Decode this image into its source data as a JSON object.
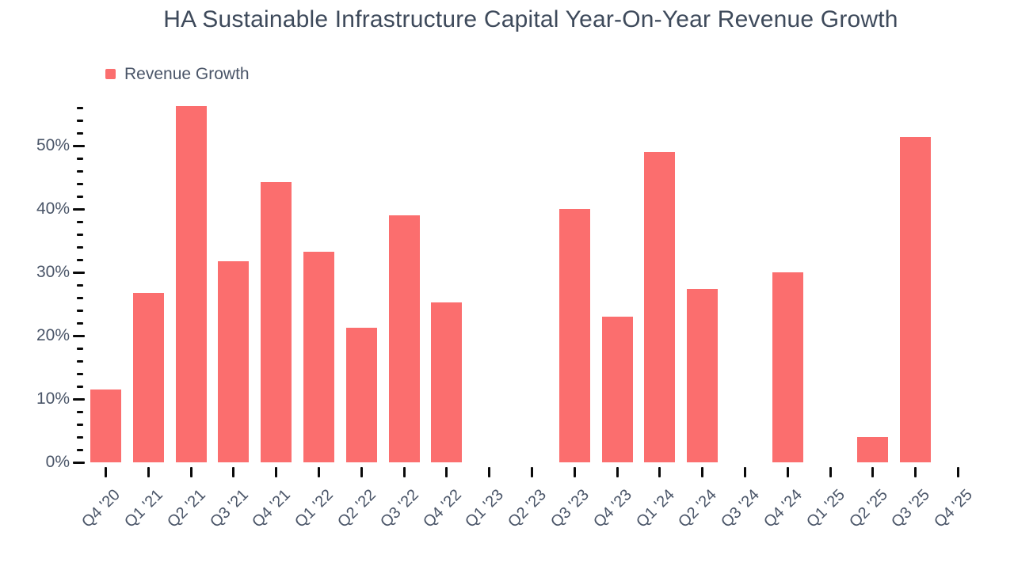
{
  "title": "HA Sustainable Infrastructure Capital Year-On-Year Revenue Growth",
  "legend": {
    "label": "Revenue Growth"
  },
  "colors": {
    "bar": "#FB6E6E",
    "axis_tick": "#0A0A0A",
    "label_text": "#4A5568",
    "title_text": "#3E4A5B",
    "background": "#FFFFFF"
  },
  "chart_data": {
    "type": "bar",
    "title": "HA Sustainable Infrastructure Capital Year-On-Year Revenue Growth",
    "series_name": "Revenue Growth",
    "unit": "%",
    "categories": [
      "Q4 '20",
      "Q1 '21",
      "Q2 '21",
      "Q3 '21",
      "Q4 '21",
      "Q1 '22",
      "Q2 '22",
      "Q3 '22",
      "Q4 '22",
      "Q1 '23",
      "Q2 '23",
      "Q3 '23",
      "Q4 '23",
      "Q1 '24",
      "Q2 '24",
      "Q3 '24",
      "Q4 '24",
      "Q1 '25",
      "Q2 '25",
      "Q3 '25",
      "Q4 '25"
    ],
    "values": [
      11.5,
      26.8,
      56.3,
      31.8,
      44.2,
      33.2,
      21.2,
      39.0,
      25.2,
      null,
      null,
      40.0,
      23.0,
      49.0,
      27.4,
      null,
      30.0,
      null,
      4.0,
      51.4,
      null
    ],
    "xlabel": "",
    "ylabel": "",
    "ylim": [
      0,
      56
    ],
    "y_major_ticks": [
      0,
      10,
      20,
      30,
      40,
      50
    ],
    "y_minor_tick_step": 2,
    "y_tick_label_format": "{value}%",
    "grid": false,
    "legend_position": "top-left",
    "missing_categories": [
      "Q1 '23",
      "Q2 '23",
      "Q3 '24",
      "Q1 '25",
      "Q4 '25"
    ]
  }
}
